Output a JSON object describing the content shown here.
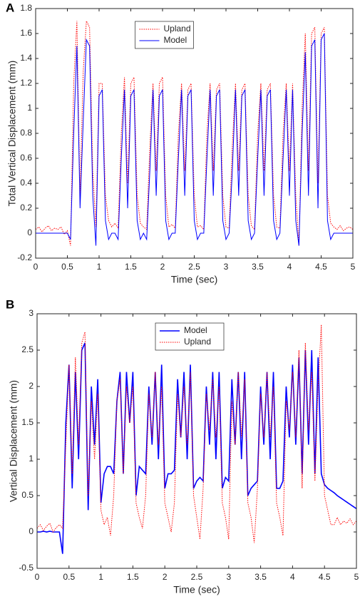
{
  "chart_data": [
    {
      "type": "line",
      "panel_label": "A",
      "xlabel": "Time (sec)",
      "ylabel": "Total Vertical Displacement (mm)",
      "x": [
        0,
        0.05,
        0.1,
        0.15,
        0.2,
        0.25,
        0.3,
        0.35,
        0.4,
        0.45,
        0.5,
        0.55,
        0.6,
        0.65,
        0.7,
        0.75,
        0.8,
        0.85,
        0.9,
        0.95,
        1,
        1.05,
        1.1,
        1.15,
        1.2,
        1.25,
        1.3,
        1.35,
        1.4,
        1.45,
        1.5,
        1.55,
        1.6,
        1.65,
        1.7,
        1.75,
        1.8,
        1.85,
        1.9,
        1.95,
        2,
        2.05,
        2.1,
        2.15,
        2.2,
        2.25,
        2.3,
        2.35,
        2.4,
        2.45,
        2.5,
        2.55,
        2.6,
        2.65,
        2.7,
        2.75,
        2.8,
        2.85,
        2.9,
        2.95,
        3,
        3.05,
        3.1,
        3.15,
        3.2,
        3.25,
        3.3,
        3.35,
        3.4,
        3.45,
        3.5,
        3.55,
        3.6,
        3.65,
        3.7,
        3.75,
        3.8,
        3.85,
        3.9,
        3.95,
        4,
        4.05,
        4.1,
        4.15,
        4.2,
        4.25,
        4.3,
        4.35,
        4.4,
        4.45,
        4.5,
        4.55,
        4.6,
        4.65,
        4.7,
        4.75,
        4.8,
        4.85,
        4.9,
        4.95,
        5
      ],
      "series": [
        {
          "name": "Upland",
          "color": "#ff0000",
          "style": "dotted",
          "line_width": 1,
          "values": [
            0.03,
            0.05,
            0.01,
            0.04,
            0.06,
            0.02,
            0.04,
            0.03,
            0.05,
            -0.01,
            0.02,
            -0.1,
            1.2,
            1.7,
            0.3,
            1.3,
            1.7,
            1.65,
            0.5,
            0.05,
            1.2,
            1.2,
            0.3,
            0.1,
            0.05,
            0.08,
            0.04,
            0.8,
            1.25,
            0.4,
            1.2,
            1.25,
            0.3,
            0.08,
            0.05,
            0.03,
            0.7,
            1.2,
            0.5,
            1.2,
            1.25,
            0.3,
            0.05,
            0.07,
            0.04,
            0.8,
            1.2,
            0.5,
            1.15,
            1.2,
            0.3,
            0.05,
            0.06,
            0.03,
            0.8,
            1.2,
            0.5,
            1.15,
            1.2,
            0.3,
            0.05,
            0.04,
            0.7,
            1.2,
            0.5,
            1.15,
            1.2,
            0.3,
            0.06,
            0.03,
            0.8,
            1.2,
            0.5,
            1.15,
            1.2,
            0.3,
            0.05,
            0.04,
            0.8,
            1.2,
            0.5,
            1.2,
            0.3,
            -0.1,
            1.0,
            1.6,
            0.5,
            1.6,
            1.65,
            0.4,
            1.6,
            1.65,
            0.3,
            0.08,
            0.05,
            0.03,
            0.06,
            0.02,
            0.04,
            0.05,
            0.03
          ]
        },
        {
          "name": "Model",
          "color": "#0000ff",
          "style": "solid",
          "line_width": 1,
          "values": [
            0,
            0,
            0,
            0,
            0,
            0,
            0,
            0,
            0,
            0,
            0,
            -0.05,
            0.8,
            1.5,
            0.2,
            0.9,
            1.55,
            1.5,
            0.3,
            -0.1,
            1.1,
            1.15,
            0.1,
            -0.05,
            0,
            0,
            -0.05,
            0.6,
            1.15,
            0.2,
            1.1,
            1.15,
            0.1,
            -0.05,
            0,
            -0.05,
            0.5,
            1.15,
            0.3,
            1.1,
            1.15,
            0.1,
            -0.05,
            0,
            0,
            0.6,
            1.15,
            0.3,
            1.1,
            1.15,
            0.1,
            -0.05,
            0,
            0,
            0.6,
            1.15,
            0.3,
            1.1,
            1.15,
            0.1,
            -0.05,
            0,
            0.5,
            1.15,
            0.3,
            1.1,
            1.15,
            0.1,
            -0.05,
            0,
            0.6,
            1.15,
            0.3,
            1.1,
            1.15,
            0.1,
            -0.05,
            0,
            0.6,
            1.15,
            0.3,
            1.15,
            0.1,
            -0.1,
            0.8,
            1.45,
            0.3,
            1.5,
            1.55,
            0.2,
            1.55,
            1.6,
            0.1,
            -0.05,
            0,
            0,
            0,
            0,
            0,
            0,
            0
          ]
        }
      ],
      "xlim": [
        0,
        5
      ],
      "ylim": [
        -0.2,
        1.8
      ],
      "xticks": [
        0,
        0.5,
        1,
        1.5,
        2,
        2.5,
        3,
        3.5,
        4,
        4.5,
        5
      ],
      "yticks": [
        -0.2,
        0,
        0.2,
        0.4,
        0.6,
        0.8,
        1,
        1.2,
        1.4,
        1.6,
        1.8
      ],
      "legend": "upper center"
    },
    {
      "type": "line",
      "panel_label": "B",
      "xlabel": "Time (sec)",
      "ylabel": "Vertical Displacement (mm)",
      "x": [
        0,
        0.05,
        0.1,
        0.15,
        0.2,
        0.25,
        0.3,
        0.35,
        0.4,
        0.45,
        0.5,
        0.55,
        0.6,
        0.65,
        0.7,
        0.75,
        0.8,
        0.85,
        0.9,
        0.95,
        1,
        1.05,
        1.1,
        1.15,
        1.2,
        1.25,
        1.3,
        1.35,
        1.4,
        1.45,
        1.5,
        1.55,
        1.6,
        1.65,
        1.7,
        1.75,
        1.8,
        1.85,
        1.9,
        1.95,
        2,
        2.05,
        2.1,
        2.15,
        2.2,
        2.25,
        2.3,
        2.35,
        2.4,
        2.45,
        2.5,
        2.55,
        2.6,
        2.65,
        2.7,
        2.75,
        2.8,
        2.85,
        2.9,
        2.95,
        3,
        3.05,
        3.1,
        3.15,
        3.2,
        3.25,
        3.3,
        3.35,
        3.4,
        3.45,
        3.5,
        3.55,
        3.6,
        3.65,
        3.7,
        3.75,
        3.8,
        3.85,
        3.9,
        3.95,
        4,
        4.05,
        4.1,
        4.15,
        4.2,
        4.25,
        4.3,
        4.35,
        4.4,
        4.45,
        4.5,
        4.55,
        4.6,
        4.65,
        4.7,
        4.75,
        4.8,
        4.85,
        4.9,
        4.95,
        5
      ],
      "series": [
        {
          "name": "Model",
          "color": "#0000ff",
          "style": "solid",
          "line_width": 1.6,
          "values": [
            0,
            0,
            0.01,
            0,
            0.01,
            0,
            0,
            0,
            -0.3,
            1.5,
            2.3,
            0.6,
            2.2,
            1.0,
            2.5,
            2.6,
            0.3,
            2.0,
            1.2,
            2.1,
            0.4,
            0.8,
            0.9,
            0.9,
            0.8,
            1.8,
            2.2,
            0.8,
            2.2,
            1.5,
            2.2,
            0.5,
            0.9,
            0.85,
            0.8,
            2.0,
            1.2,
            2.2,
            1.0,
            2.3,
            0.6,
            0.8,
            0.8,
            0.85,
            2.1,
            1.3,
            2.2,
            1.0,
            2.3,
            0.6,
            0.7,
            0.75,
            0.7,
            2.0,
            1.2,
            2.2,
            1.0,
            2.2,
            0.6,
            0.75,
            0.7,
            2.1,
            1.2,
            2.2,
            1.0,
            2.2,
            0.5,
            0.6,
            0.65,
            0.7,
            2.0,
            1.2,
            2.2,
            1.0,
            2.2,
            0.6,
            0.6,
            0.7,
            2.0,
            1.3,
            2.3,
            1.2,
            2.4,
            0.8,
            2.5,
            1.2,
            2.5,
            0.8,
            2.4,
            0.8,
            0.65,
            0.6,
            0.57,
            0.54,
            0.5,
            0.47,
            0.44,
            0.41,
            0.38,
            0.35,
            0.32
          ]
        },
        {
          "name": "Upland",
          "color": "#ff0000",
          "style": "dotted",
          "line_width": 1,
          "values": [
            0.05,
            0.1,
            0.02,
            0.08,
            0.12,
            0.0,
            0.06,
            0.1,
            0.05,
            1.2,
            2.3,
            0.8,
            2.4,
            1.2,
            2.6,
            2.75,
            0.5,
            1.8,
            1.0,
            1.9,
            0.3,
            0.1,
            0.2,
            -0.05,
            0.5,
            1.8,
            2.1,
            0.8,
            2.0,
            1.5,
            2.0,
            0.4,
            0.2,
            0.05,
            0.5,
            1.9,
            1.3,
            2.2,
            1.2,
            2.0,
            0.4,
            0.2,
            0.0,
            0.4,
            1.9,
            1.3,
            2.0,
            1.2,
            2.2,
            0.5,
            0.2,
            -0.1,
            0.6,
            1.9,
            1.4,
            2.1,
            1.3,
            2.0,
            0.4,
            0.2,
            -0.1,
            1.8,
            1.2,
            2.2,
            1.3,
            2.1,
            0.4,
            0.2,
            -0.15,
            0.6,
            1.9,
            1.3,
            2.2,
            1.3,
            2.0,
            0.4,
            0.2,
            -0.05,
            1.8,
            1.4,
            2.2,
            1.3,
            2.5,
            0.6,
            2.6,
            1.4,
            2.2,
            0.7,
            2.0,
            2.85,
            0.5,
            0.3,
            0.1,
            0.1,
            0.2,
            0.1,
            0.15,
            0.12,
            0.18,
            0.1,
            0.15
          ]
        }
      ],
      "xlim": [
        0,
        5
      ],
      "ylim": [
        -0.5,
        3
      ],
      "xticks": [
        0,
        0.5,
        1,
        1.5,
        2,
        2.5,
        3,
        3.5,
        4,
        4.5,
        5
      ],
      "yticks": [
        -0.5,
        0,
        0.5,
        1,
        1.5,
        2,
        2.5,
        3
      ],
      "legend": "upper center"
    }
  ]
}
